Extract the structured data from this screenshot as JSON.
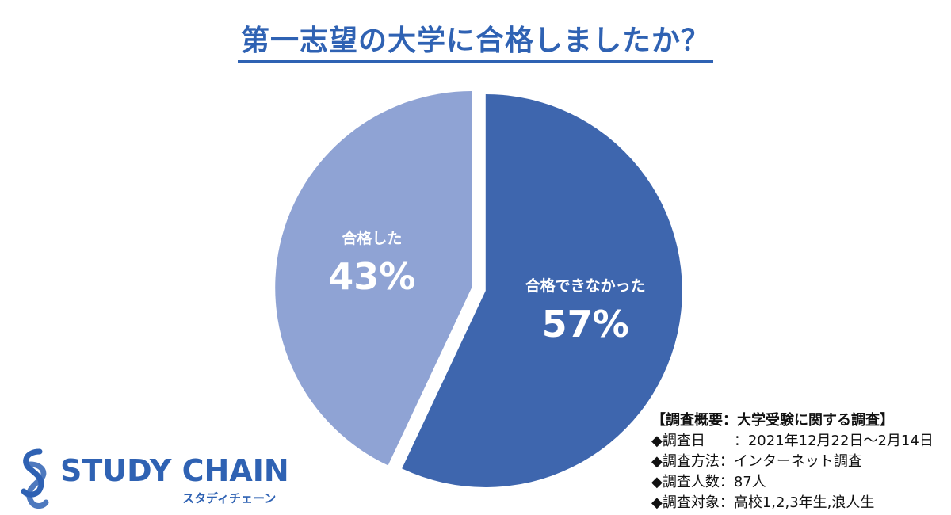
{
  "chart_data": {
    "type": "pie",
    "title": "第一志望の大学に合格しましたか？",
    "slices": [
      {
        "label": "合格できなかった",
        "value": 57,
        "value_text": "57%",
        "color": "#3e66ae"
      },
      {
        "label": "合格した",
        "value": 43,
        "value_text": "43%",
        "color": "#8fa3d4"
      }
    ],
    "start": "12 o'clock",
    "direction": "clockwise",
    "legend": "none (labels inside slices)"
  },
  "summary": {
    "heading": "【調査概要：大学受験に関する調査】",
    "rows": [
      {
        "marker": "◆",
        "label": "調査日　　",
        "sep": "：",
        "value": "2021年12月22日～2月14日"
      },
      {
        "marker": "◆",
        "label": "調査方法",
        "sep": "：",
        "value": "インターネット調査"
      },
      {
        "marker": "◆",
        "label": "調査人数",
        "sep": "：",
        "value": "87人"
      },
      {
        "marker": "◆",
        "label": "調査対象",
        "sep": "：",
        "value": "高校1,2,3年生,浪人生"
      }
    ]
  },
  "brand": {
    "name": "STUDY CHAIN",
    "name_kana": "スタディチェーン",
    "logo_icon": "chain-s-icon",
    "color": "#2f62b3"
  }
}
